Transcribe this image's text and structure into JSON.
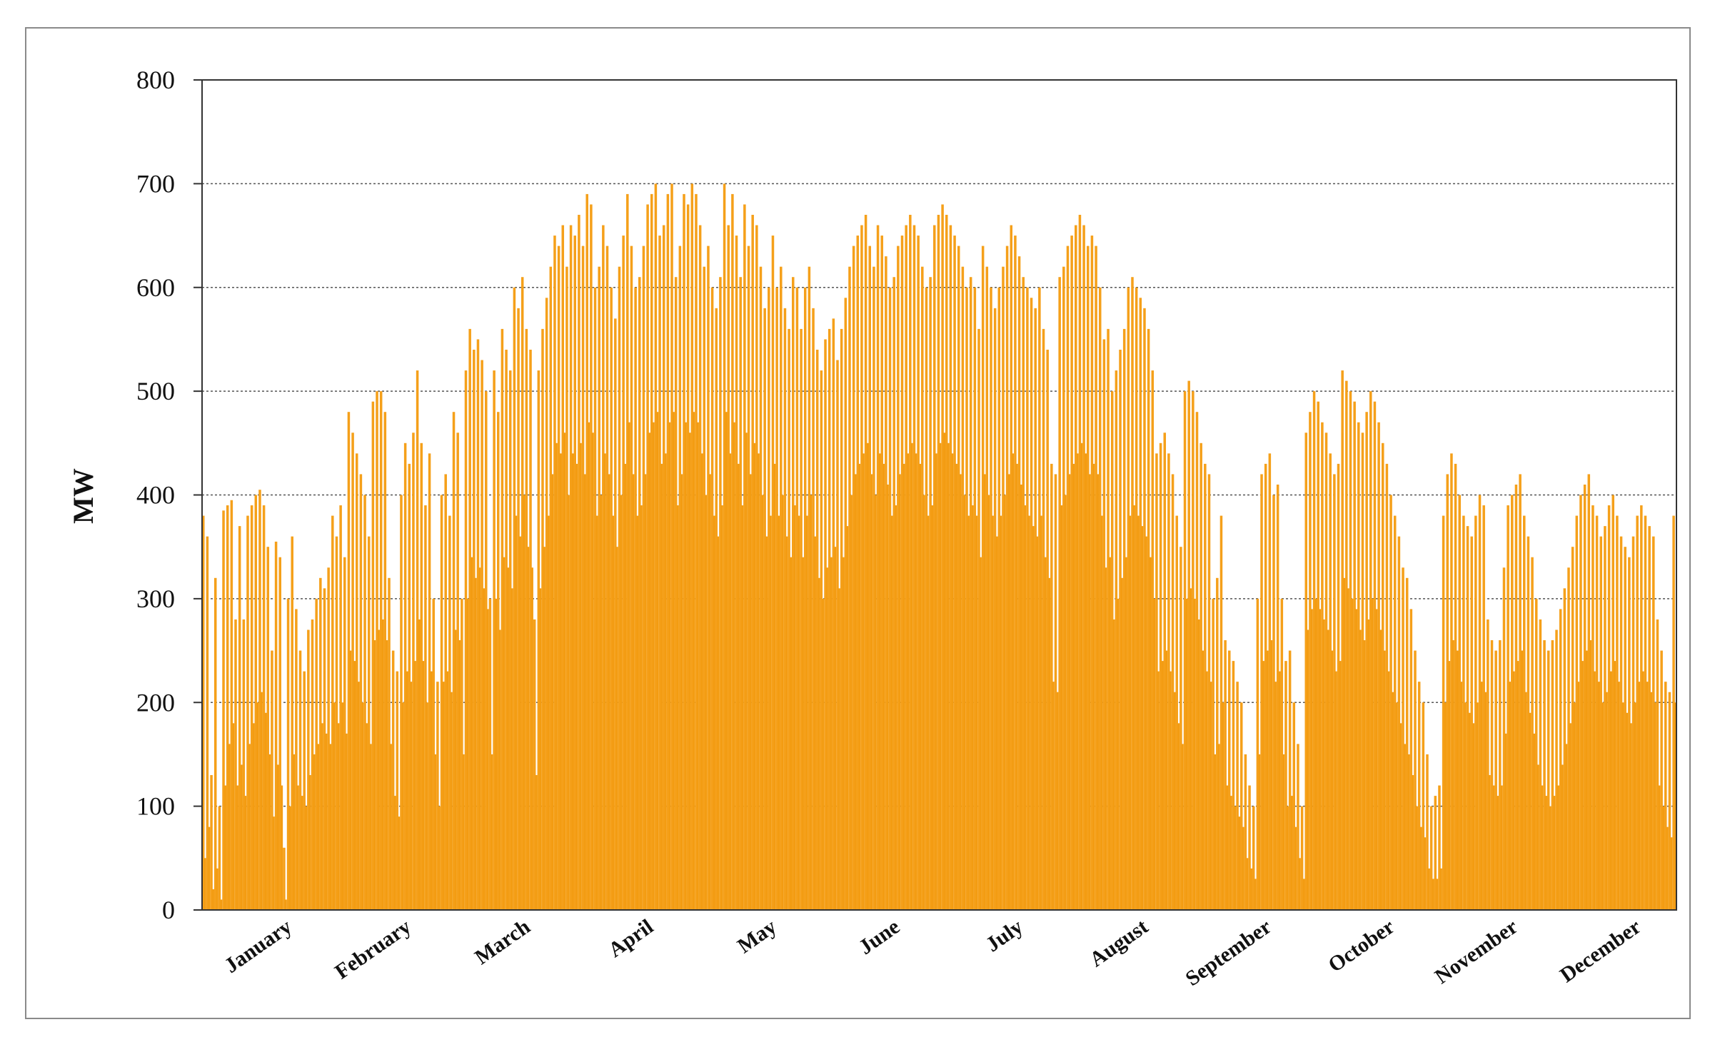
{
  "chart_data": {
    "type": "bar",
    "title": "",
    "xlabel": "",
    "ylabel": "MW",
    "ylim": [
      0,
      800
    ],
    "yticks": [
      0,
      100,
      200,
      300,
      400,
      500,
      600,
      700,
      800
    ],
    "grid": "horizontal dotted",
    "bar_color": "#f5a01a",
    "months": [
      "January",
      "February",
      "March",
      "April",
      "May",
      "June",
      "July",
      "August",
      "September",
      "October",
      "November",
      "December"
    ],
    "series": [
      {
        "daily_peak_by_month": [
          [
            380,
            360,
            130,
            320,
            100,
            385,
            390,
            395,
            280,
            370,
            280,
            380,
            390,
            400,
            405,
            390,
            350,
            250,
            355,
            340,
            60,
            300,
            360,
            290,
            250,
            230,
            270,
            280,
            300,
            320,
            310
          ],
          [
            330,
            380,
            360,
            390,
            340,
            480,
            460,
            440,
            420,
            400,
            360,
            490,
            500,
            500,
            480,
            320,
            250,
            230,
            400,
            450,
            430,
            460,
            520,
            450,
            390,
            440,
            300,
            220
          ],
          [
            400,
            420,
            380,
            480,
            460,
            300,
            520,
            560,
            540,
            550,
            530,
            500,
            300,
            520,
            480,
            560,
            540,
            520,
            600,
            580,
            610,
            560,
            540,
            280,
            520,
            560,
            590,
            620,
            650,
            640,
            660
          ],
          [
            620,
            660,
            650,
            670,
            640,
            690,
            680,
            600,
            620,
            660,
            640,
            600,
            570,
            620,
            650,
            690,
            640,
            600,
            610,
            640,
            680,
            690,
            700,
            650,
            660,
            690,
            700,
            610,
            640,
            690
          ],
          [
            680,
            700,
            690,
            660,
            620,
            640,
            600,
            580,
            610,
            700,
            660,
            690,
            650,
            610,
            680,
            640,
            670,
            660,
            620,
            580,
            600,
            650,
            600,
            620,
            580,
            560,
            610,
            600,
            560,
            600,
            620
          ],
          [
            580,
            540,
            520,
            550,
            560,
            570,
            530,
            560,
            590,
            620,
            640,
            650,
            660,
            670,
            640,
            620,
            660,
            650,
            630,
            600,
            610,
            640,
            650,
            660,
            670,
            660,
            650,
            620,
            600,
            610
          ],
          [
            660,
            670,
            680,
            670,
            660,
            650,
            640,
            620,
            600,
            610,
            600,
            560,
            640,
            620,
            600,
            580,
            600,
            620,
            640,
            660,
            650,
            630,
            610,
            600,
            590,
            580,
            600,
            560,
            540,
            430,
            420
          ],
          [
            610,
            620,
            640,
            650,
            660,
            670,
            660,
            640,
            650,
            640,
            600,
            550,
            560,
            500,
            520,
            540,
            560,
            600,
            610,
            600,
            590,
            580,
            560,
            520,
            440,
            450,
            460,
            440,
            420,
            380,
            350
          ],
          [
            500,
            510,
            500,
            480,
            450,
            430,
            420,
            300,
            320,
            380,
            260,
            250,
            240,
            220,
            200,
            150,
            120,
            100,
            300,
            420,
            430,
            440,
            400,
            410,
            300,
            240,
            250,
            200,
            160,
            100
          ],
          [
            460,
            480,
            500,
            490,
            470,
            460,
            440,
            420,
            430,
            520,
            510,
            500,
            490,
            470,
            460,
            480,
            500,
            490,
            470,
            450,
            430,
            400,
            380,
            360,
            330,
            320,
            290,
            250,
            220,
            200,
            150
          ],
          [
            100,
            110,
            120,
            380,
            420,
            440,
            430,
            400,
            380,
            370,
            360,
            380,
            400,
            390,
            280,
            260,
            250,
            260,
            330,
            390,
            400,
            410,
            420,
            380,
            360,
            340,
            300,
            280,
            260,
            250
          ],
          [
            260,
            270,
            290,
            310,
            330,
            350,
            380,
            400,
            410,
            420,
            390,
            380,
            360,
            370,
            390,
            400,
            380,
            360,
            350,
            340,
            360,
            380,
            390,
            380,
            370,
            360,
            280,
            250,
            220,
            210,
            380
          ]
        ],
        "daily_trough_by_month": [
          [
            50,
            80,
            20,
            40,
            10,
            120,
            160,
            180,
            120,
            140,
            110,
            160,
            180,
            200,
            210,
            190,
            150,
            90,
            140,
            120,
            10,
            100,
            150,
            120,
            110,
            100,
            130,
            150,
            160,
            180,
            170
          ],
          [
            160,
            200,
            180,
            200,
            170,
            250,
            240,
            220,
            200,
            180,
            160,
            260,
            270,
            280,
            260,
            160,
            110,
            90,
            200,
            230,
            220,
            240,
            280,
            240,
            200,
            230,
            150,
            100
          ],
          [
            220,
            230,
            210,
            270,
            260,
            150,
            300,
            340,
            320,
            330,
            310,
            290,
            150,
            300,
            270,
            340,
            330,
            310,
            380,
            360,
            400,
            350,
            330,
            130,
            310,
            350,
            380,
            420,
            450,
            440,
            460
          ],
          [
            400,
            440,
            430,
            450,
            420,
            470,
            460,
            380,
            400,
            440,
            420,
            380,
            350,
            400,
            430,
            470,
            420,
            380,
            390,
            420,
            460,
            470,
            480,
            430,
            440,
            470,
            480,
            390,
            420,
            470
          ],
          [
            460,
            480,
            470,
            440,
            400,
            420,
            380,
            360,
            390,
            480,
            440,
            470,
            430,
            390,
            460,
            420,
            450,
            440,
            400,
            360,
            380,
            430,
            380,
            400,
            360,
            340,
            390,
            380,
            340,
            380,
            400
          ],
          [
            360,
            320,
            300,
            330,
            340,
            350,
            310,
            340,
            370,
            400,
            420,
            430,
            440,
            450,
            420,
            400,
            440,
            430,
            410,
            380,
            390,
            420,
            430,
            440,
            450,
            440,
            430,
            400,
            380,
            390
          ],
          [
            440,
            450,
            460,
            450,
            440,
            430,
            420,
            400,
            380,
            390,
            380,
            340,
            420,
            400,
            380,
            360,
            380,
            400,
            420,
            440,
            430,
            410,
            390,
            380,
            370,
            360,
            380,
            340,
            320,
            220,
            210
          ],
          [
            390,
            400,
            420,
            430,
            440,
            450,
            440,
            420,
            430,
            420,
            380,
            330,
            340,
            280,
            300,
            320,
            340,
            380,
            390,
            380,
            370,
            360,
            340,
            300,
            230,
            240,
            250,
            230,
            210,
            180,
            160
          ],
          [
            300,
            310,
            300,
            280,
            250,
            230,
            220,
            150,
            160,
            200,
            120,
            110,
            100,
            90,
            80,
            50,
            40,
            30,
            150,
            240,
            250,
            260,
            220,
            230,
            150,
            100,
            110,
            80,
            50,
            30
          ],
          [
            270,
            290,
            300,
            290,
            280,
            270,
            250,
            230,
            240,
            320,
            310,
            300,
            290,
            270,
            260,
            280,
            300,
            290,
            270,
            250,
            230,
            210,
            200,
            180,
            160,
            150,
            130,
            100,
            80,
            70,
            40
          ],
          [
            30,
            30,
            40,
            200,
            240,
            260,
            250,
            220,
            200,
            190,
            180,
            200,
            220,
            210,
            130,
            120,
            110,
            120,
            170,
            220,
            230,
            240,
            250,
            210,
            190,
            170,
            140,
            120,
            110,
            100
          ],
          [
            110,
            120,
            140,
            160,
            180,
            200,
            220,
            240,
            250,
            260,
            230,
            220,
            200,
            210,
            230,
            240,
            220,
            200,
            190,
            180,
            200,
            220,
            230,
            220,
            210,
            200,
            120,
            100,
            80,
            70,
            200
          ]
        ]
      }
    ]
  }
}
